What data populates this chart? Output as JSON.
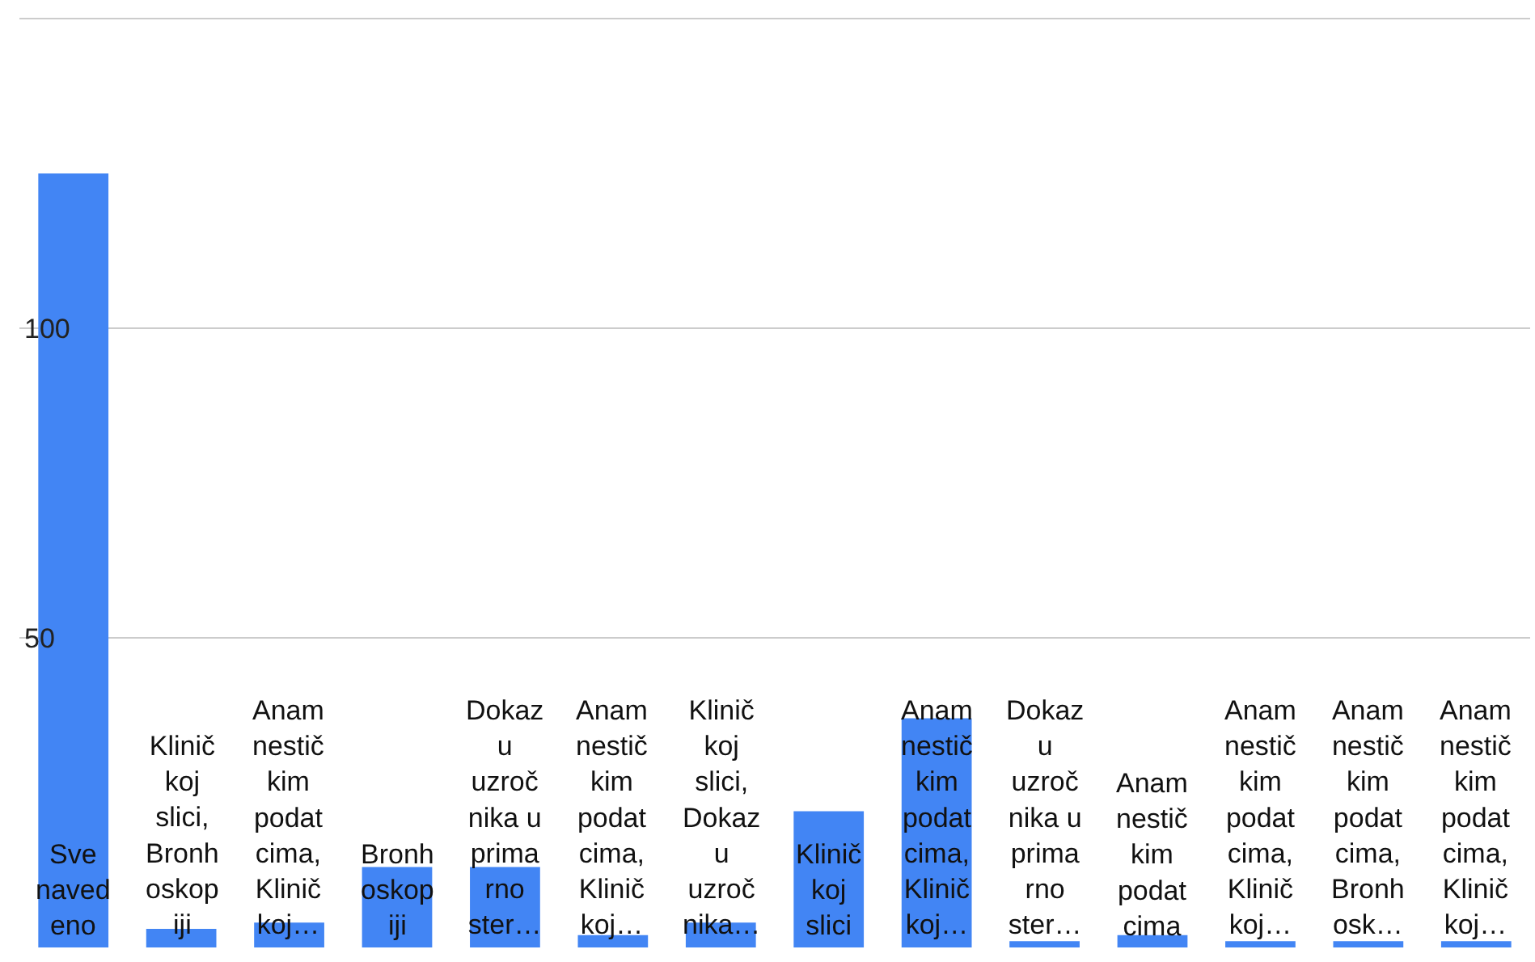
{
  "chart_data": {
    "type": "bar",
    "categories": [
      "Sve navedeno",
      "Kliničkoj slici, Bronhoskopiji",
      "Anamnestičkim podatcima, Kliničkoj…",
      "Bronhoskopiji",
      "Dokazu uzročnika u primarno ster…",
      "Anamnestičkim podatcima, Kliničkoj…",
      "Kliničkoj slici, Dokazu uzročnika…",
      "Kliničkoj slici",
      "Anamnestičkim podatcima, Kliničkoj…",
      "Dokazu uzročnika u primarno ster…",
      "Anamnestičkim podatcima",
      "Anamnestičkim podatcima, Kliničkoj…",
      "Anamnestičkim podatcima, Bronhosk…",
      "Anamnestičkim podatcima, Kliničkoj…"
    ],
    "values": [
      125,
      3,
      4,
      13,
      13,
      2,
      4,
      22,
      37,
      1,
      2,
      1,
      1,
      1
    ],
    "color": "#4285f4",
    "ylim": [
      0,
      153
    ],
    "yticks": [
      50,
      100,
      {
        "value": 150,
        "label": null
      }
    ],
    "grid": "y"
  }
}
